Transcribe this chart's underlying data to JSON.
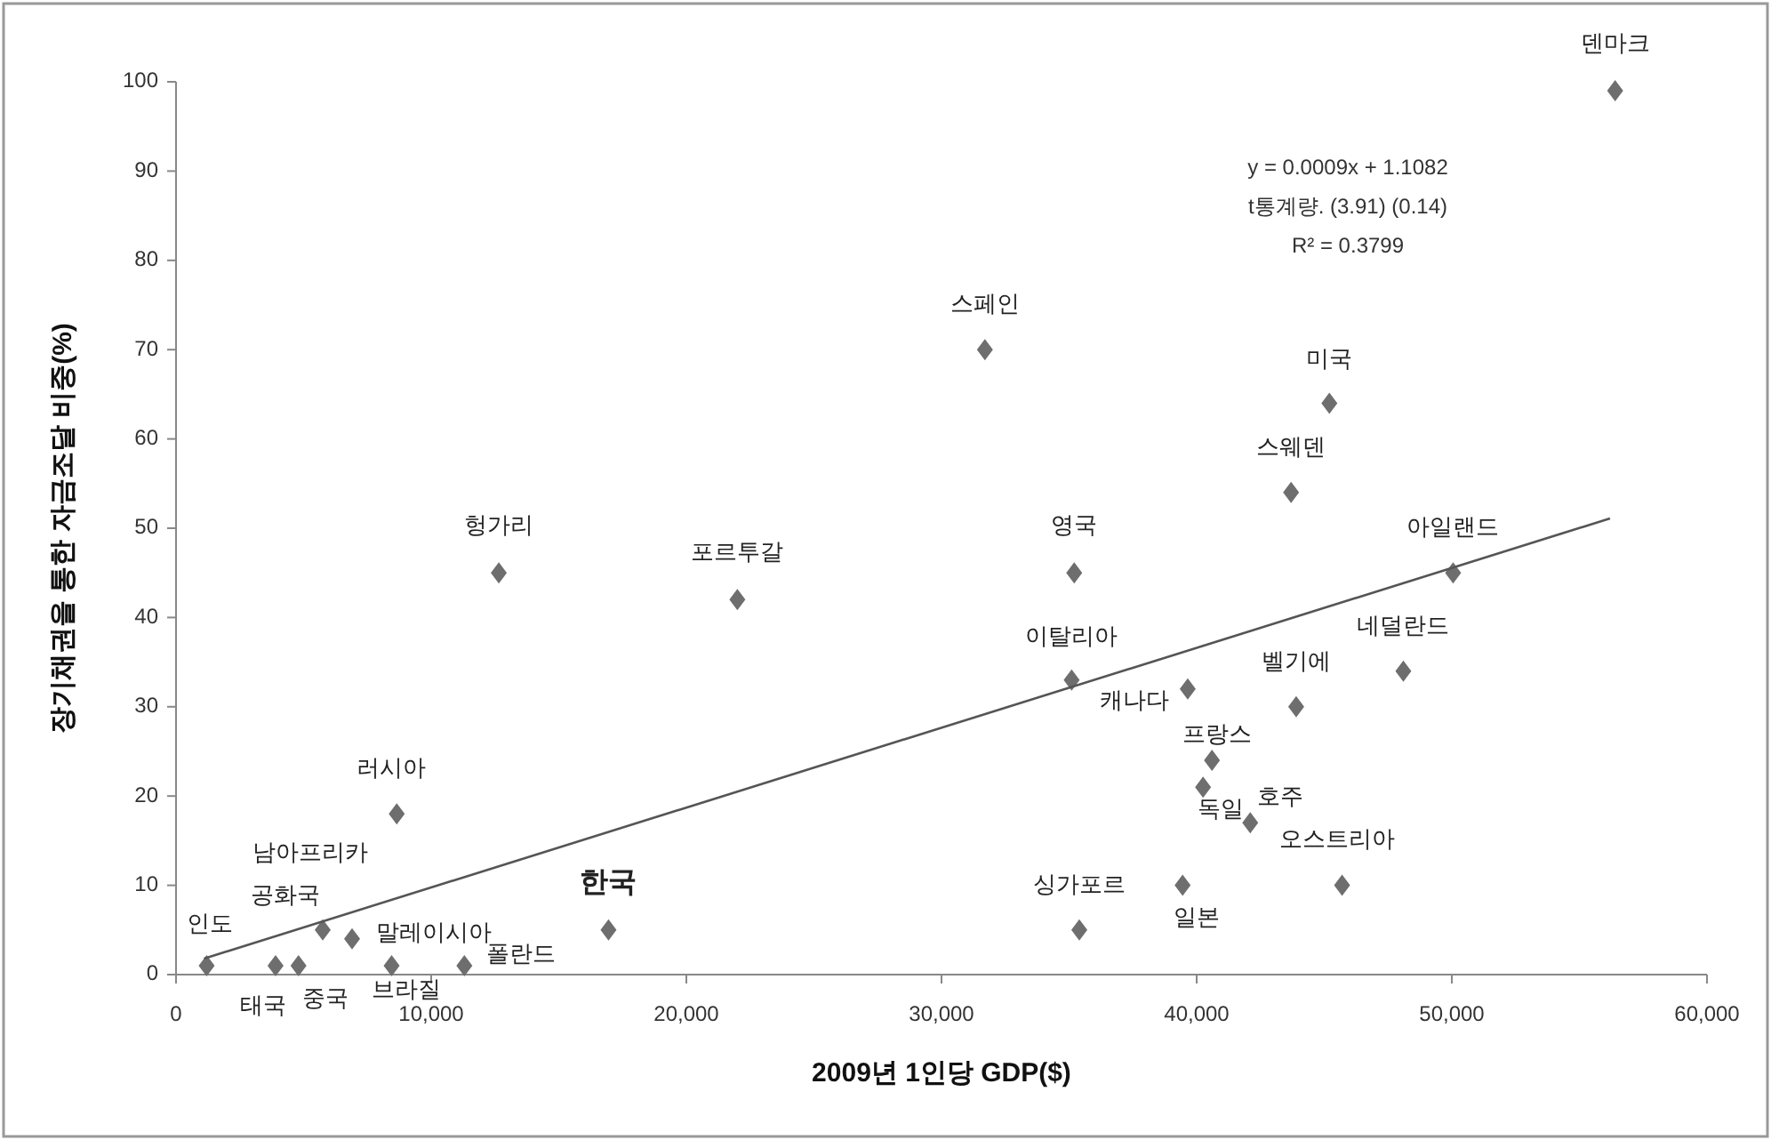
{
  "chart_data": {
    "type": "scatter",
    "xlabel": "2009년 1인당 GDP($)",
    "ylabel": "장기채권을 통한 자금조달 비중(%)",
    "xlim": [
      0,
      60000
    ],
    "ylim": [
      0,
      100
    ],
    "xticks": [
      0,
      {
        "value": 10000,
        "label": "10,000"
      },
      {
        "value": 20000,
        "label": "20,000"
      },
      {
        "value": 30000,
        "label": "30,000"
      },
      {
        "value": 40000,
        "label": "40,000"
      },
      {
        "value": 50000,
        "label": "50,000"
      },
      {
        "value": 60000,
        "label": "60,000"
      }
    ],
    "yticks": [
      0,
      10,
      20,
      30,
      40,
      50,
      60,
      70,
      80,
      90,
      100
    ],
    "series": [
      {
        "color": "#6e6e6e",
        "marker": "diamond",
        "x": [
          1200,
          3900,
          4800,
          5750,
          6900,
          8450,
          11300,
          8650,
          12650,
          22000,
          16950,
          31700,
          45200,
          43700,
          56400,
          35200,
          50050,
          35100,
          39650,
          43900,
          48100,
          40600,
          40250,
          42100,
          45700,
          35400,
          39450
        ],
        "values": [
          1,
          1,
          1,
          5,
          4,
          1,
          1,
          18,
          45,
          42,
          5,
          70,
          64,
          54,
          99,
          45,
          45,
          33,
          32,
          30,
          34,
          24,
          21,
          17,
          10,
          5,
          10
        ]
      },
      {
        "type": "line",
        "color": "#555555",
        "x": [
          1100,
          56200
        ],
        "values": [
          1.8,
          51.1
        ]
      }
    ],
    "annotations": [
      {
        "text": "인도",
        "x": 1200,
        "y": 1
      },
      {
        "text": "태국",
        "x": 3900,
        "y": 1
      },
      {
        "text": "중국",
        "x": 4800,
        "y": 1
      },
      {
        "text": "남아프리카\n공화국",
        "x": 5750,
        "y": 5
      },
      {
        "text": "말레이시아",
        "x": 6900,
        "y": 4
      },
      {
        "text": "브라질",
        "x": 8450,
        "y": 1
      },
      {
        "text": "폴란드",
        "x": 11300,
        "y": 1
      },
      {
        "text": "러시아",
        "x": 8650,
        "y": 18
      },
      {
        "text": "헝가리",
        "x": 12650,
        "y": 45
      },
      {
        "text": "포르투갈",
        "x": 22000,
        "y": 42
      },
      {
        "text": "한국",
        "x": 16950,
        "y": 5
      },
      {
        "text": "스페인",
        "x": 31700,
        "y": 70
      },
      {
        "text": "미국",
        "x": 45200,
        "y": 64
      },
      {
        "text": "스웨덴",
        "x": 43700,
        "y": 54
      },
      {
        "text": "덴마크",
        "x": 56400,
        "y": 99
      },
      {
        "text": "영국",
        "x": 35200,
        "y": 45
      },
      {
        "text": "아일랜드",
        "x": 50050,
        "y": 45
      },
      {
        "text": "이탈리아",
        "x": 35100,
        "y": 33
      },
      {
        "text": "캐나다",
        "x": 39650,
        "y": 32
      },
      {
        "text": "벨기에",
        "x": 43900,
        "y": 30
      },
      {
        "text": "네덜란드",
        "x": 48100,
        "y": 34
      },
      {
        "text": "프랑스",
        "x": 40600,
        "y": 24
      },
      {
        "text": "독일",
        "x": 40250,
        "y": 21
      },
      {
        "text": "호주",
        "x": 42100,
        "y": 17
      },
      {
        "text": "오스트리아",
        "x": 45700,
        "y": 10
      },
      {
        "text": "싱가포르",
        "x": 35400,
        "y": 5
      },
      {
        "text": "일본",
        "x": 39450,
        "y": 10
      },
      "y = 0.0009x + 1.1082",
      "t통계량. (3.91)   (0.14)",
      "R² = 0.3799"
    ]
  }
}
